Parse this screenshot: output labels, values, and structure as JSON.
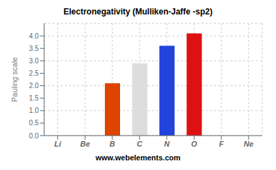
{
  "chart_data": {
    "type": "bar",
    "title": "Electronegativity (Mulliken-Jaffe -sp2)",
    "ylabel": "Pauling scale",
    "annotations": [
      "www.webelements.com"
    ],
    "categories": [
      "Li",
      "Be",
      "B",
      "C",
      "N",
      "O",
      "F",
      "Ne"
    ],
    "values": [
      0.0,
      0.0,
      2.1,
      2.9,
      3.6,
      4.1,
      0.0,
      0.0
    ],
    "colors": [
      "#9999cc",
      "#9999cc",
      "#dd4400",
      "#dddddd",
      "#2244dd",
      "#dd1111",
      "#cccc44",
      "#cc9900"
    ],
    "ylim": [
      0,
      4.5
    ],
    "yticks": [
      {
        "value": 0,
        "label": "0.0"
      },
      0.5,
      {
        "value": 1,
        "label": "1.0"
      },
      1.5,
      {
        "value": 2,
        "label": "2.0"
      },
      2.5,
      {
        "value": 3,
        "label": "3.0"
      },
      3.5,
      {
        "value": 4,
        "label": "4.0"
      }
    ],
    "grid": true
  }
}
